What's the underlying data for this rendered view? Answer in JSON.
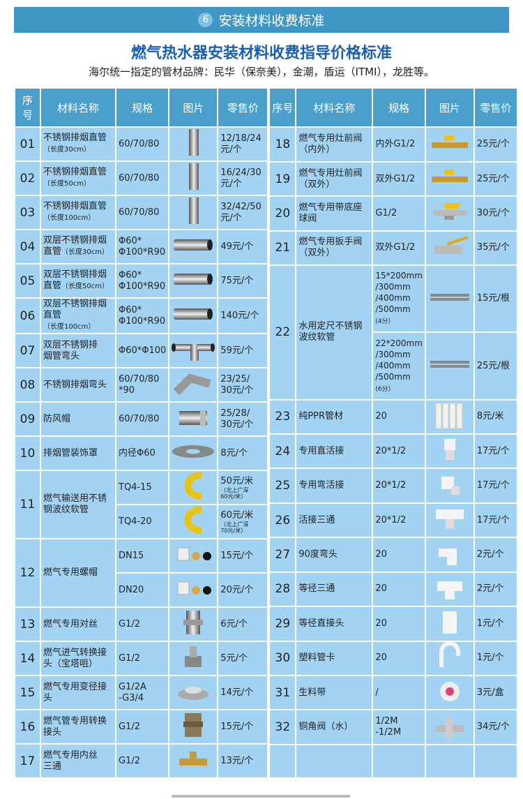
{
  "header": {
    "badge": "6",
    "title": "安装材料收费标准"
  },
  "main_title": "燃气热水器安装材料收费指导价格标准",
  "subtitle": "海尔统一指定的管材品牌：民华（保奈美），金潮，盾运（ITMI），龙胜等。",
  "columns": [
    "序号",
    "材料名称",
    "规格",
    "图片",
    "零售价"
  ],
  "colors": {
    "banner": "#3f97c6",
    "header": "#4a9fcb",
    "cell": "#a3d3f3",
    "title": "#1b5fb0"
  },
  "left": [
    {
      "no": "01",
      "name": "不锈钢排烟直管",
      "sub": "（长度30cm）",
      "variants": [
        {
          "spec": "60/70/80",
          "price": "12/18/24\n元/个",
          "icon": "pipe-vertical"
        }
      ]
    },
    {
      "no": "02",
      "name": "不锈钢排烟直管",
      "sub": "（长度50cm）",
      "variants": [
        {
          "spec": "60/70/80",
          "price": "16/24/30\n元/个",
          "icon": "pipe-vertical"
        }
      ]
    },
    {
      "no": "03",
      "name": "不锈钢排烟直管",
      "sub": "（长度100cm）",
      "variants": [
        {
          "spec": "60/70/80",
          "price": "32/42/50\n元/个",
          "icon": "pipe-vertical"
        }
      ]
    },
    {
      "no": "04",
      "name": "双层不锈钢排烟\n直管",
      "sub": "（长度30cm）",
      "variants": [
        {
          "spec": "Φ60*\nΦ100*R90",
          "price": "49元/个",
          "icon": "pipe-horizontal"
        }
      ]
    },
    {
      "no": "05",
      "name": "双层不锈钢排烟\n直管",
      "sub": "（长度50cm）",
      "variants": [
        {
          "spec": "Φ60*\nΦ100*R90",
          "price": "75元/个",
          "icon": "pipe-horizontal"
        }
      ]
    },
    {
      "no": "06",
      "name": "双层不锈钢排烟\n直管",
      "sub": "（长度100cm）",
      "variants": [
        {
          "spec": "Φ60*\nΦ100*R90",
          "price": "140元/个",
          "icon": "pipe-horizontal"
        }
      ]
    },
    {
      "no": "07",
      "name": "双层不锈钢排\n烟管弯头",
      "variants": [
        {
          "spec": "Φ60*Φ100",
          "price": "59元/个",
          "icon": "elbow-double"
        }
      ]
    },
    {
      "no": "08",
      "name": "不锈钢排烟弯头",
      "variants": [
        {
          "spec": "60/70/80\n*90",
          "price": "23/25/\n30元/个",
          "icon": "elbow"
        }
      ]
    },
    {
      "no": "09",
      "name": "防风帽",
      "variants": [
        {
          "spec": "60/70/80",
          "price": "25/28/\n30元/个",
          "icon": "wind-cap"
        }
      ]
    },
    {
      "no": "10",
      "name": "排烟管装饰罩",
      "variants": [
        {
          "spec": "内径Φ60",
          "price": "8元/个",
          "icon": "ring"
        }
      ]
    },
    {
      "no": "11",
      "name": "燃气输送用不锈\n钢波纹软管",
      "variants": [
        {
          "spec": "TQ4-15",
          "price": "50元/米",
          "note": "（北上广深\n60元/米）",
          "icon": "yellow-hose"
        },
        {
          "spec": "TQ4-20",
          "price": "60元/米",
          "note": "（北上广深\n70元/米）",
          "icon": "yellow-hose"
        }
      ]
    },
    {
      "no": "12",
      "name": "燃气专用螺帽",
      "variants": [
        {
          "spec": "DN15",
          "price": "15元/个",
          "icon": "nut-set"
        },
        {
          "spec": "DN20",
          "price": "20元/个",
          "icon": "nut-set"
        }
      ]
    },
    {
      "no": "13",
      "name": "燃气专用对丝",
      "variants": [
        {
          "spec": "G1/2",
          "price": "6元/个",
          "icon": "nipple"
        }
      ]
    },
    {
      "no": "14",
      "name": "燃气进气转换接\n头（宝塔咀）",
      "variants": [
        {
          "spec": "G1/2",
          "price": "5元/个",
          "icon": "hose-barb"
        }
      ]
    },
    {
      "no": "15",
      "name": "燃气专用变径接\n头",
      "variants": [
        {
          "spec": "G1/2A\n-G3/4",
          "price": "14元/个",
          "icon": "reducer"
        }
      ]
    },
    {
      "no": "16",
      "name": "燃气管专用转换\n接头",
      "variants": [
        {
          "spec": "G1/2",
          "price": "15元/个",
          "icon": "adapter"
        }
      ]
    },
    {
      "no": "17",
      "name": "燃气专用内丝\n三通",
      "variants": [
        {
          "spec": "G1/2",
          "price": "13元/个",
          "icon": "brass-tee"
        }
      ]
    }
  ],
  "right": [
    {
      "no": "18",
      "name": "燃气专用灶前阀\n（内外）",
      "variants": [
        {
          "spec": "内外G1/2",
          "price": "25元/个",
          "icon": "gas-valve"
        }
      ]
    },
    {
      "no": "19",
      "name": "燃气专用灶前阀\n（双外）",
      "variants": [
        {
          "spec": "双外G1/2",
          "price": "25元/个",
          "icon": "gas-valve"
        }
      ]
    },
    {
      "no": "20",
      "name": "燃气专用带底座\n球阀",
      "variants": [
        {
          "spec": "G1/2",
          "price": "30元/个",
          "icon": "base-valve"
        }
      ]
    },
    {
      "no": "21",
      "name": "燃气专用扳手阀\n（双外）",
      "variants": [
        {
          "spec": "双外G1/2",
          "price": "35元/个",
          "icon": "ball-valve"
        }
      ]
    },
    {
      "no": "22",
      "name": "水用定尺不锈钢\n波纹软管",
      "variants": [
        {
          "spec": "15*200mm\n/300mm\n/400mm\n/500mm",
          "spec_note": "(4分）",
          "price": "15元/根",
          "icon": "flex-hose"
        },
        {
          "spec": "22*200mm\n/300mm\n/400mm\n/500mm",
          "spec_note": "(6分）",
          "price": "25元/根",
          "icon": "flex-hose"
        }
      ]
    },
    {
      "no": "23",
      "name": "纯PPR管材",
      "variants": [
        {
          "spec": "20",
          "price": "8元/米",
          "icon": "ppr-pipes"
        }
      ]
    },
    {
      "no": "24",
      "name": "专用直活接",
      "variants": [
        {
          "spec": "20*1/2",
          "price": "17元/个",
          "icon": "ppr-union"
        }
      ]
    },
    {
      "no": "25",
      "name": "专用弯活接",
      "variants": [
        {
          "spec": "20*1/2",
          "price": "17元/个",
          "icon": "ppr-elbow-union"
        }
      ]
    },
    {
      "no": "26",
      "name": "活接三通",
      "variants": [
        {
          "spec": "20*1/2",
          "price": "17元/个",
          "icon": "ppr-tee-union"
        }
      ]
    },
    {
      "no": "27",
      "name": "90度弯头",
      "variants": [
        {
          "spec": "20",
          "price": "2元/个",
          "icon": "ppr-elbow"
        }
      ]
    },
    {
      "no": "28",
      "name": "等径三通",
      "variants": [
        {
          "spec": "20",
          "price": "2元/个",
          "icon": "ppr-tee"
        }
      ]
    },
    {
      "no": "29",
      "name": "等径直接头",
      "variants": [
        {
          "spec": "20",
          "price": "1元/个",
          "icon": "ppr-coupling"
        }
      ]
    },
    {
      "no": "30",
      "name": "塑料管卡",
      "variants": [
        {
          "spec": "20",
          "price": "1元/个",
          "icon": "pipe-clip"
        }
      ]
    },
    {
      "no": "31",
      "name": "生料带",
      "variants": [
        {
          "spec": "/",
          "price": "3元/盒",
          "icon": "ptfe-tape"
        }
      ]
    },
    {
      "no": "32",
      "name": "铜角阀（水）",
      "variants": [
        {
          "spec": "1/2M\n-1/2M",
          "price": "34元/个",
          "icon": "angle-valve"
        }
      ]
    },
    {
      "no": "",
      "name": "",
      "variants": [
        {
          "spec": "",
          "price": "",
          "icon": ""
        }
      ]
    }
  ]
}
